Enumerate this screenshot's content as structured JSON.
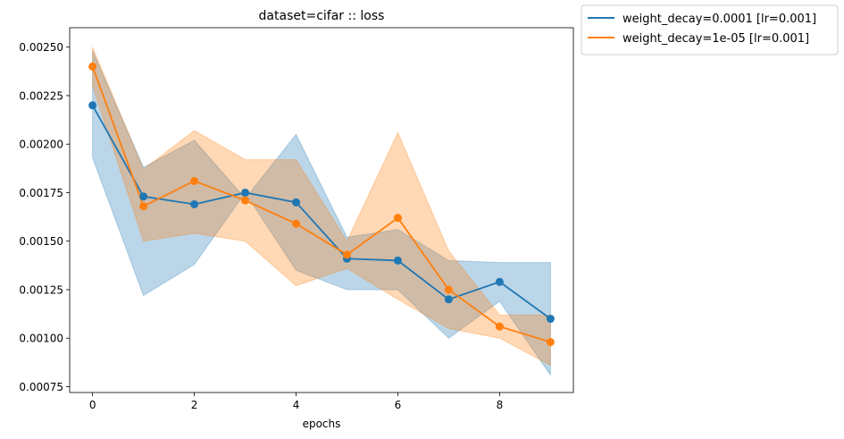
{
  "chart_data": {
    "type": "line",
    "title": "dataset=cifar :: loss",
    "xlabel": "epochs",
    "ylabel": "",
    "xlim": [
      -0.45,
      9.45
    ],
    "ylim": [
      0.00072,
      0.0026
    ],
    "x_ticks": [
      0,
      2,
      4,
      6,
      8
    ],
    "x_tick_labels": [
      "0",
      "2",
      "4",
      "6",
      "8"
    ],
    "y_ticks": [
      0.00075,
      0.001,
      0.00125,
      0.0015,
      0.00175,
      0.002,
      0.00225,
      0.0025
    ],
    "y_tick_labels": [
      "0.00075",
      "0.00100",
      "0.00125",
      "0.00150",
      "0.00175",
      "0.00200",
      "0.00225",
      "0.00250"
    ],
    "grid": false,
    "legend_position": "outside upper right",
    "x": [
      0,
      1,
      2,
      3,
      4,
      5,
      6,
      7,
      8,
      9
    ],
    "series": [
      {
        "name": "weight_decay=0.0001 [lr=0.001]",
        "color": "#1f77b4",
        "values": [
          0.0022,
          0.00173,
          0.00169,
          0.00175,
          0.0017,
          0.00141,
          0.0014,
          0.0012,
          0.00129,
          0.0011
        ],
        "band_upper": [
          0.00248,
          0.00188,
          0.00202,
          0.00172,
          0.00205,
          0.00152,
          0.00156,
          0.0014,
          0.00139,
          0.00139
        ],
        "band_lower": [
          0.00193,
          0.00122,
          0.00138,
          0.00175,
          0.00135,
          0.00125,
          0.00125,
          0.001,
          0.00119,
          0.00081
        ]
      },
      {
        "name": "weight_decay=1e-05 [lr=0.001]",
        "color": "#ff7f0e",
        "values": [
          0.0024,
          0.00168,
          0.00181,
          0.00171,
          0.00159,
          0.00143,
          0.00162,
          0.00125,
          0.00106,
          0.00098
        ],
        "band_upper": [
          0.0025,
          0.00187,
          0.00207,
          0.00192,
          0.00192,
          0.0015,
          0.00206,
          0.00145,
          0.00112,
          0.00112
        ],
        "band_lower": [
          0.0023,
          0.0015,
          0.00154,
          0.0015,
          0.00127,
          0.00136,
          0.0012,
          0.00105,
          0.001,
          0.00086
        ]
      }
    ]
  }
}
